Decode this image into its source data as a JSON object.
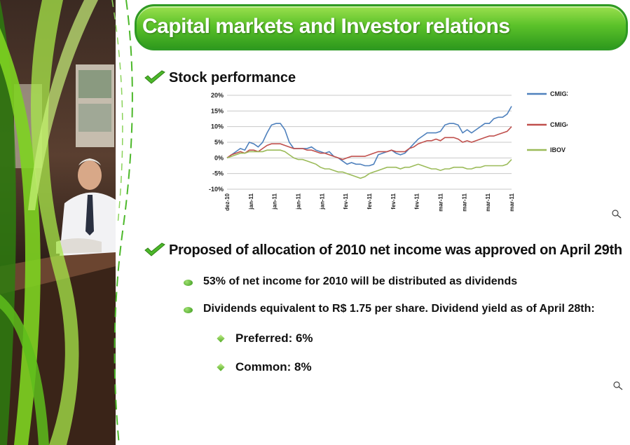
{
  "slide": {
    "title": "Capital markets and Investor relations"
  },
  "stock_section": {
    "heading": "Stock performance"
  },
  "proposal_section": {
    "heading": "Proposed of allocation of 2010 net income was approved on April 29th",
    "bullets": [
      "53% of net income for 2010 will be distributed as dividends",
      "Dividends equivalent to R$ 1.75 per share. Dividend yield as of April 28th:"
    ],
    "sub_bullets": [
      "Preferred: 6%",
      "Common: 8%"
    ]
  },
  "colors": {
    "accent_green": "#4cb82a",
    "CMIG3": "#4f81bd",
    "CMIG4": "#c0504d",
    "IBOV": "#9bbb59"
  },
  "icons": [
    "checkmark-icon",
    "zoom-icon"
  ],
  "chart_data": {
    "type": "line",
    "ylim": [
      -10,
      20
    ],
    "yticks": [
      "20%",
      "15%",
      "10%",
      "5%",
      "0%",
      "-5%",
      "-10%"
    ],
    "xticks": [
      "dez-10",
      "jan-11",
      "jan-11",
      "jan-11",
      "jan-11",
      "fev-11",
      "fev-11",
      "fev-11",
      "fev-11",
      "mar-11",
      "mar-11",
      "mar-11",
      "mar-11"
    ],
    "grid": true,
    "legend_position": "right",
    "series": [
      {
        "name": "CMIG3",
        "values": [
          0,
          1,
          2,
          3,
          2.5,
          5,
          4.5,
          3.5,
          5,
          8,
          10.5,
          11,
          11,
          9,
          5,
          3,
          3,
          3,
          3,
          3.5,
          2.5,
          2,
          1.5,
          2,
          0.5,
          0,
          -1,
          -2,
          -1.5,
          -2,
          -2,
          -2.5,
          -2.5,
          -2,
          1,
          1.5,
          2,
          2.5,
          1.5,
          1,
          1.5,
          3,
          4.5,
          6,
          7,
          8,
          8,
          8,
          8.5,
          10.5,
          11,
          11,
          10.5,
          8,
          9,
          8,
          9,
          10,
          11,
          11,
          12.5,
          13,
          13,
          14,
          16.5
        ]
      },
      {
        "name": "CMIG4",
        "values": [
          0,
          1,
          1.5,
          2,
          1.5,
          2.5,
          2.5,
          2,
          3,
          4,
          4.5,
          4.5,
          4.5,
          4,
          3.5,
          3,
          3,
          3,
          2.5,
          2.5,
          2,
          1.5,
          1.5,
          1,
          0.5,
          0,
          -0.5,
          0,
          0.5,
          0.5,
          0.5,
          0.5,
          1,
          1.5,
          2,
          2,
          2,
          2.5,
          2,
          2,
          2,
          3,
          3.5,
          4.5,
          5,
          5.5,
          5.5,
          6,
          5.5,
          6.5,
          6.5,
          6.5,
          6,
          5,
          5.5,
          5,
          5.5,
          6,
          6.5,
          7,
          7,
          7.5,
          8,
          8.5,
          10
        ]
      },
      {
        "name": "IBOV",
        "values": [
          0,
          0.5,
          1,
          1.5,
          1.5,
          2,
          2,
          2,
          2,
          2.5,
          2.5,
          2.5,
          2.5,
          2,
          1,
          0,
          -0.5,
          -0.5,
          -1,
          -1.5,
          -2,
          -3,
          -3.5,
          -3.5,
          -4,
          -4.5,
          -4.5,
          -5,
          -5.5,
          -6,
          -6.5,
          -6,
          -5,
          -4.5,
          -4,
          -3.5,
          -3,
          -3,
          -3,
          -3.5,
          -3,
          -3,
          -2.5,
          -2,
          -2.5,
          -3,
          -3.5,
          -3.5,
          -4,
          -3.5,
          -3.5,
          -3,
          -3,
          -3,
          -3.5,
          -3.5,
          -3,
          -3,
          -2.5,
          -2.5,
          -2.5,
          -2.5,
          -2.5,
          -2,
          -0.5
        ]
      }
    ]
  }
}
